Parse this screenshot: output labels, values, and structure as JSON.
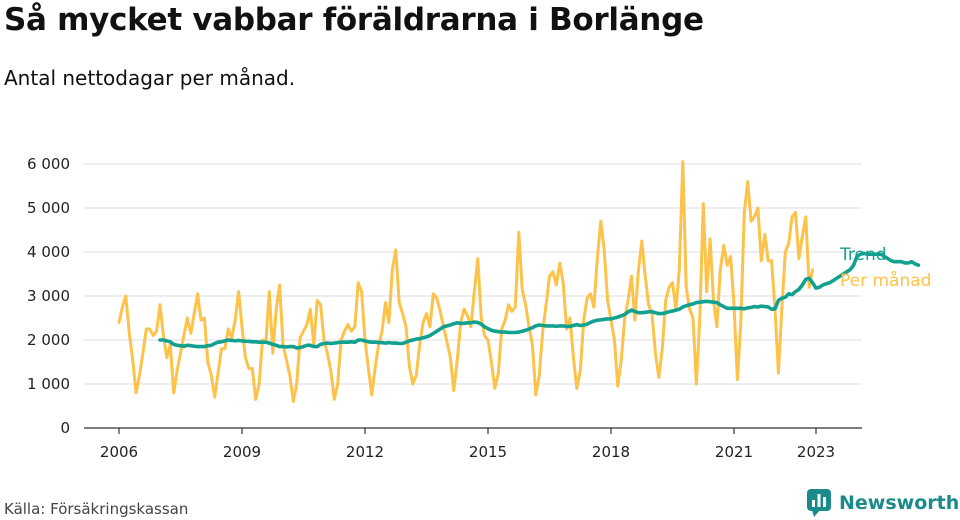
{
  "title": "Så mycket vabbar föräldrarna i Borlänge",
  "subtitle": "Antal nettodagar per månad.",
  "source": "Källa: Försäkringskassan",
  "brand": {
    "name": "Newsworthy",
    "icon": "bar-chart-logo-icon"
  },
  "colors": {
    "monthly": "#fdc24a",
    "trend": "#12a08f",
    "axis": "#333333",
    "grid": "#dddddd",
    "brand": "#1b8a8a"
  },
  "chart_data": {
    "type": "line",
    "x_start": "2006-01",
    "x_ticks": [
      "2006",
      "2009",
      "2012",
      "2015",
      "2018",
      "2021",
      "2023"
    ],
    "y_ticks": [
      "0",
      "1 000",
      "2 000",
      "3 000",
      "4 000",
      "5 000",
      "6 000"
    ],
    "ylim": [
      0,
      6000
    ],
    "grid": "horizontal",
    "legend_position": "right-end-of-lines",
    "series": [
      {
        "name": "Per månad",
        "color": "#fdc24a",
        "values": [
          2400,
          2750,
          3000,
          2150,
          1550,
          800,
          1200,
          1700,
          2250,
          2250,
          2100,
          2200,
          2800,
          2100,
          1600,
          1900,
          800,
          1300,
          1700,
          2100,
          2500,
          2150,
          2600,
          3050,
          2450,
          2500,
          1500,
          1200,
          700,
          1250,
          1800,
          1800,
          2250,
          2050,
          2450,
          3100,
          2300,
          1600,
          1350,
          1350,
          650,
          1000,
          2000,
          1950,
          3100,
          1700,
          2700,
          3250,
          1900,
          1550,
          1200,
          600,
          1000,
          2050,
          2200,
          2350,
          2700,
          1900,
          2900,
          2800,
          2000,
          1700,
          1300,
          650,
          1000,
          2000,
          2200,
          2350,
          2200,
          2300,
          3300,
          3100,
          2000,
          1350,
          750,
          1400,
          1900,
          2200,
          2850,
          2400,
          3600,
          4050,
          2850,
          2600,
          2300,
          1400,
          1000,
          1200,
          1900,
          2400,
          2600,
          2300,
          3050,
          2950,
          2650,
          2300,
          1950,
          1600,
          850,
          1550,
          2400,
          2700,
          2550,
          2300,
          3100,
          3850,
          2500,
          2100,
          2000,
          1500,
          900,
          1250,
          2250,
          2450,
          2800,
          2650,
          2750,
          4450,
          3150,
          2800,
          2300,
          1900,
          750,
          1200,
          2200,
          2800,
          3450,
          3550,
          3250,
          3750,
          3300,
          2250,
          2500,
          1600,
          900,
          1300,
          2450,
          2950,
          3050,
          2750,
          3850,
          4700,
          4050,
          2900,
          2450,
          2000,
          950,
          1550,
          2500,
          2900,
          3450,
          2450,
          3550,
          4250,
          3450,
          2800,
          2600,
          1700,
          1150,
          1800,
          2900,
          3200,
          3300,
          2700,
          3600,
          6050,
          3200,
          2700,
          2500,
          1000,
          2500,
          5100,
          3100,
          4300,
          2900,
          2300,
          3600,
          4150,
          3700,
          3900,
          2800,
          1100,
          2400,
          4900,
          5600,
          4700,
          4800,
          5000,
          3800,
          4400,
          3800,
          3800,
          2700,
          1250,
          2700,
          4000,
          4200,
          4800,
          4900,
          3850,
          4350,
          4800,
          3200,
          3600
        ]
      },
      {
        "name": "Trend",
        "color": "#12a08f",
        "values": [
          2000,
          2000,
          1980,
          1960,
          1900,
          1880,
          1870,
          1860,
          1880,
          1870,
          1860,
          1850,
          1850,
          1850,
          1870,
          1880,
          1920,
          1950,
          1960,
          1980,
          2000,
          1990,
          1980,
          1990,
          1980,
          1970,
          1970,
          1960,
          1960,
          1950,
          1950,
          1950,
          1930,
          1900,
          1880,
          1850,
          1850,
          1840,
          1850,
          1850,
          1820,
          1830,
          1850,
          1880,
          1880,
          1850,
          1850,
          1900,
          1920,
          1930,
          1920,
          1930,
          1940,
          1950,
          1950,
          1950,
          1960,
          1950,
          2000,
          2000,
          1980,
          1960,
          1950,
          1950,
          1940,
          1940,
          1930,
          1940,
          1930,
          1930,
          1920,
          1920,
          1950,
          1980,
          2000,
          2020,
          2030,
          2050,
          2070,
          2100,
          2150,
          2200,
          2250,
          2300,
          2320,
          2340,
          2370,
          2390,
          2380,
          2380,
          2390,
          2390,
          2410,
          2400,
          2360,
          2300,
          2260,
          2220,
          2200,
          2190,
          2180,
          2180,
          2170,
          2170,
          2170,
          2180,
          2200,
          2220,
          2250,
          2280,
          2320,
          2340,
          2330,
          2320,
          2320,
          2320,
          2310,
          2320,
          2320,
          2310,
          2310,
          2330,
          2350,
          2330,
          2340,
          2360,
          2400,
          2430,
          2450,
          2460,
          2470,
          2480,
          2480,
          2500,
          2520,
          2550,
          2580,
          2640,
          2680,
          2650,
          2620,
          2620,
          2630,
          2640,
          2640,
          2620,
          2600,
          2600,
          2620,
          2640,
          2660,
          2680,
          2700,
          2750,
          2780,
          2800,
          2820,
          2850,
          2860,
          2870,
          2880,
          2870,
          2860,
          2850,
          2800,
          2760,
          2720,
          2720,
          2720,
          2720,
          2720,
          2710,
          2730,
          2740,
          2760,
          2750,
          2770,
          2760,
          2750,
          2700,
          2710,
          2900,
          2950,
          2970,
          3050,
          3030,
          3100,
          3150,
          3250,
          3380,
          3400,
          3300,
          3180,
          3200,
          3250,
          3280,
          3300,
          3350,
          3400,
          3450,
          3500,
          3550,
          3600,
          3700,
          3900,
          3950,
          3970,
          3950,
          3950,
          3950,
          3950,
          3950,
          3900,
          3850,
          3800,
          3780,
          3780,
          3780,
          3750,
          3750,
          3780,
          3730,
          3700
        ]
      }
    ]
  }
}
